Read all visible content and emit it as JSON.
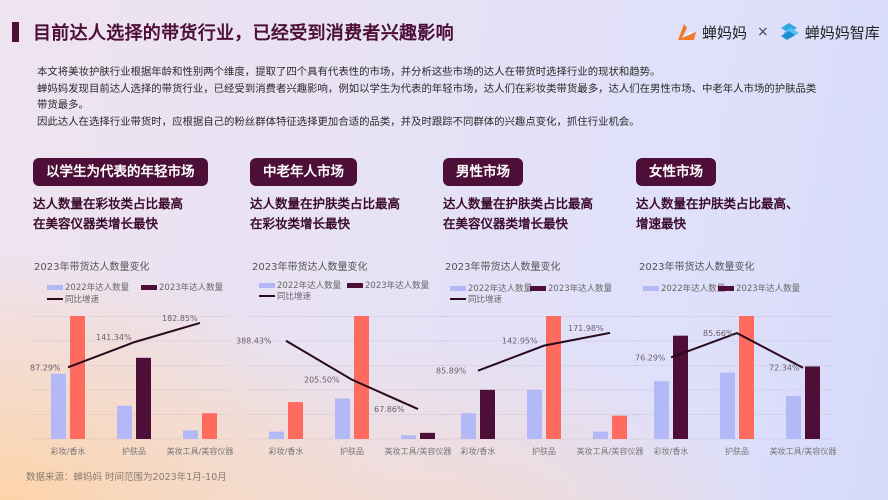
{
  "header": {
    "title": "目前达人选择的带货行业，已经受到消费者兴趣影响",
    "logo_left": "蝉妈妈",
    "separator": "×",
    "logo_right": "蝉妈妈智库"
  },
  "intro": {
    "line1": "本文将美妆护肤行业根据年龄和性别两个维度，提取了四个具有代表性的市场，并分析这些市场的达人在带货时选择行业的现状和趋势。",
    "line2": "蝉妈妈发现目前达人选择的带货行业，已经受到消费者兴趣影响，例如以学生为代表的年轻市场，达人们在彩妆类带货最多，达人们在男性市场、中老年人市场的护肤品类",
    "line3": "带货最多。",
    "line4": "因此达人在选择行业带货时，应根据自己的粉丝群体特征选择更加合适的品类，并及时跟踪不同群体的兴趣点变化，抓住行业机会。"
  },
  "colors": {
    "brand_dark": "#4d0f37",
    "bar_2022": "#b3b8f7",
    "bar_2023_dark": "#4d0f37",
    "bar_2023_highlight": "#ff6b5e",
    "line": "#2a0a1c"
  },
  "legend": {
    "y2022": "2022年达人数量",
    "y2023": "2023年达人数量",
    "yoy": "同比增速"
  },
  "cards": [
    {
      "tag": "以学生为代表的年轻市场",
      "headline1": "达人数量在彩妆类占比最高",
      "headline2": "在美容仪器类增长最快",
      "chart_title": "2023年带货达人数量变化"
    },
    {
      "tag": "中老年人市场",
      "headline1": "达人数量在护肤类占比最高",
      "headline2": "在彩妆类增长最快",
      "chart_title": "2023年带货达人数量变化"
    },
    {
      "tag": "男性市场",
      "headline1": "达人数量在护肤类占比最高",
      "headline2": "在美容仪器类增长最快",
      "chart_title": "2023年带货达人数量变化"
    },
    {
      "tag": "女性市场",
      "headline1": "达人数量在护肤类占比最高、",
      "headline2": "增速最快",
      "chart_title": "2023年带货达人数量变化"
    }
  ],
  "footer": {
    "source": "数据来源：蝉妈妈 时间范围为2023年1月-10月"
  },
  "chart_data": [
    {
      "type": "bar",
      "title": "以学生为代表的年轻市场 — 2023年带货达人数量变化",
      "categories": [
        "彩妆/香水",
        "护肤品",
        "美妆工具/美容仪器"
      ],
      "series": [
        {
          "name": "2022年达人数量",
          "type": "bar",
          "values": [
            53,
            27,
            7
          ]
        },
        {
          "name": "2023年达人数量",
          "type": "bar",
          "values": [
            100,
            66,
            21
          ],
          "highlight": [
            true,
            false,
            true
          ]
        },
        {
          "name": "同比增速",
          "type": "line",
          "values": [
            87.29,
            141.34,
            182.85
          ],
          "labels": [
            "87.29%",
            "141.34%",
            "182.85%"
          ]
        }
      ],
      "xlabel": "",
      "ylabel": "",
      "grid": true,
      "legend_position": "top-left",
      "note": "bar heights relative (no y-axis shown)"
    },
    {
      "type": "bar",
      "title": "中老年人市场 — 2023年带货达人数量变化",
      "categories": [
        "彩妆/香水",
        "护肤品",
        "美妆工具/美容仪器"
      ],
      "series": [
        {
          "name": "2022年达人数量",
          "type": "bar",
          "values": [
            6,
            33,
            3
          ]
        },
        {
          "name": "2023年达人数量",
          "type": "bar",
          "values": [
            30,
            100,
            5
          ],
          "highlight": [
            true,
            true,
            false
          ]
        },
        {
          "name": "同比增速",
          "type": "line",
          "values": [
            388.43,
            205.5,
            67.86
          ],
          "labels": [
            "388.43%",
            "205.50%",
            "67.86%"
          ]
        }
      ],
      "xlabel": "",
      "ylabel": "",
      "grid": true,
      "legend_position": "top-left"
    },
    {
      "type": "bar",
      "title": "男性市场 — 2023年带货达人数量变化",
      "categories": [
        "彩妆/香水",
        "护肤品",
        "美妆工具/美容仪器"
      ],
      "series": [
        {
          "name": "2022年达人数量",
          "type": "bar",
          "values": [
            21,
            40,
            6
          ]
        },
        {
          "name": "2023年达人数量",
          "type": "bar",
          "values": [
            40,
            100,
            19
          ],
          "highlight": [
            false,
            true,
            true
          ]
        },
        {
          "name": "同比增速",
          "type": "line",
          "values": [
            85.89,
            142.95,
            171.98
          ],
          "labels": [
            "85.89%",
            "142.95%",
            "171.98%"
          ]
        }
      ],
      "xlabel": "",
      "ylabel": "",
      "grid": true,
      "legend_position": "top-left"
    },
    {
      "type": "bar",
      "title": "女性市场 — 2023年带货达人数量变化",
      "categories": [
        "彩妆/香水",
        "护肤品",
        "美妆工具/美容仪器"
      ],
      "series": [
        {
          "name": "2022年达人数量",
          "type": "bar",
          "values": [
            47,
            54,
            35
          ]
        },
        {
          "name": "2023年达人数量",
          "type": "bar",
          "values": [
            84,
            100,
            59
          ],
          "highlight": [
            false,
            true,
            false
          ]
        },
        {
          "name": "同比增速",
          "type": "line",
          "values": [
            76.29,
            85.66,
            72.34
          ],
          "labels": [
            "76.29%",
            "85.66%",
            "72.34%"
          ]
        }
      ],
      "xlabel": "",
      "ylabel": "",
      "grid": true,
      "legend_position": "top-left"
    }
  ]
}
